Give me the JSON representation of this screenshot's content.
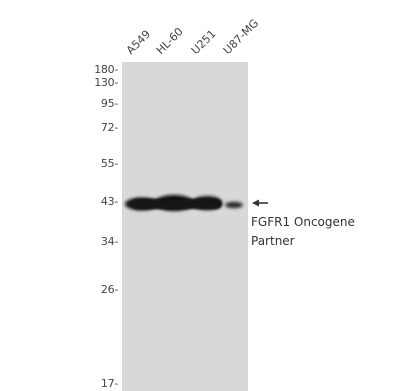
{
  "lanes": [
    "A549",
    "HL-60",
    "U251",
    "U87-MG"
  ],
  "markers": [
    "180-",
    "130-",
    "95-",
    "72-",
    "55-",
    "43-",
    "34-",
    "26-",
    "17-"
  ],
  "target": {
    "line1": "FGFR1 Oncogene",
    "line2": "Partner"
  },
  "colors": {
    "membrane": "#d8d8d8",
    "band": "#141414",
    "text": "#444444"
  }
}
